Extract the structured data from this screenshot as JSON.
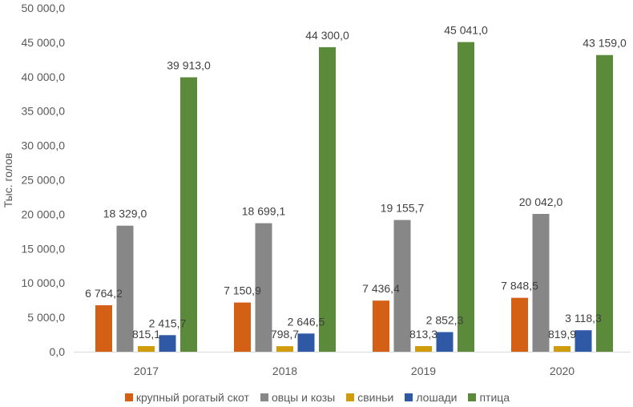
{
  "chart_data": {
    "type": "bar",
    "title": "",
    "xlabel": "",
    "ylabel": "Тыс. голов",
    "ylim": [
      0,
      50000
    ],
    "ytick_step": 5000,
    "yticks": [
      "0,0",
      "5 000,0",
      "10 000,0",
      "15 000,0",
      "20 000,0",
      "25 000,0",
      "30 000,0",
      "35 000,0",
      "40 000,0",
      "45 000,0",
      "50 000,0"
    ],
    "grid": false,
    "legend_position": "bottom",
    "categories": [
      "2017",
      "2018",
      "2019",
      "2020"
    ],
    "series": [
      {
        "name": "крупный рогатый скот",
        "color": "#D36015",
        "values": [
          6764.2,
          7150.9,
          7436.4,
          7848.5
        ],
        "labels": [
          "6 764,2",
          "7 150,9",
          "7 436,4",
          "7 848,5"
        ]
      },
      {
        "name": "овцы и козы",
        "color": "#878787",
        "values": [
          18329.0,
          18699.1,
          19155.7,
          20042.0
        ],
        "labels": [
          "18 329,0",
          "18 699,1",
          "19 155,7",
          "20 042,0"
        ]
      },
      {
        "name": "свиньи",
        "color": "#D19C0C",
        "values": [
          815.1,
          798.7,
          813.3,
          819.9
        ],
        "labels": [
          "815,1",
          "798,7",
          "813,3",
          "819,9"
        ]
      },
      {
        "name": "лошади",
        "color": "#3059A5",
        "values": [
          2415.7,
          2646.5,
          2852.3,
          3118.3
        ],
        "labels": [
          "2 415,7",
          "2 646,5",
          "2 852,3",
          "3 118,3"
        ]
      },
      {
        "name": "птица",
        "color": "#5A8A3A",
        "values": [
          39913.0,
          44300.0,
          45041.0,
          43159.0
        ],
        "labels": [
          "39 913,0",
          "44 300,0",
          "45 041,0",
          "43 159,0"
        ]
      }
    ]
  }
}
